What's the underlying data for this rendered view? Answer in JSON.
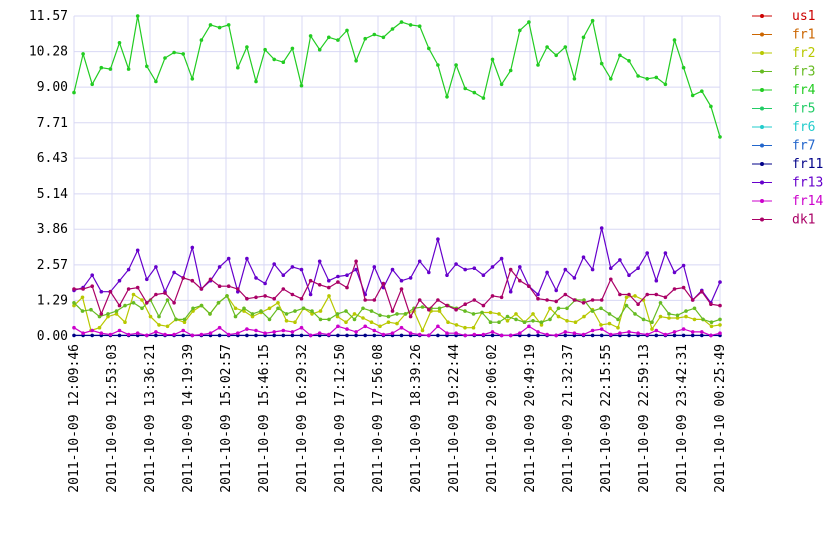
{
  "chart_data": {
    "type": "line",
    "title": "",
    "xlabel": "",
    "ylabel": "",
    "ylim": [
      0,
      11.57
    ],
    "grid": true,
    "legend_position": "right",
    "y_ticks": [
      "0.00",
      "1.29",
      "2.57",
      "3.86",
      "5.14",
      "6.43",
      "7.71",
      "9.00",
      "10.28",
      "11.57"
    ],
    "x_tick_labels": [
      "2011-10-09 12:09:46",
      "2011-10-09 12:53:03",
      "2011-10-09 13:36:21",
      "2011-10-09 14:19:39",
      "2011-10-09 15:02:57",
      "2011-10-09 15:46:15",
      "2011-10-09 16:29:32",
      "2011-10-09 17:12:50",
      "2011-10-09 17:56:08",
      "2011-10-09 18:39:26",
      "2011-10-09 19:22:44",
      "2011-10-09 20:06:02",
      "2011-10-09 20:49:19",
      "2011-10-09 21:32:37",
      "2011-10-09 22:15:55",
      "2011-10-09 22:59:13",
      "2011-10-09 23:42:31",
      "2011-10-10 00:25:49"
    ],
    "series": [
      {
        "name": "us1",
        "color": "#cc0000",
        "values": []
      },
      {
        "name": "fr1",
        "color": "#cc6600",
        "values": []
      },
      {
        "name": "fr2",
        "color": "#b8c800",
        "values": [
          1.1,
          1.4,
          0.2,
          0.3,
          0.7,
          0.8,
          0.5,
          1.5,
          1.3,
          0.7,
          0.4,
          0.35,
          0.6,
          0.5,
          0.9,
          1.1,
          0.8,
          1.2,
          1.45,
          1.0,
          0.9,
          0.7,
          0.85,
          1.0,
          1.2,
          0.55,
          0.5,
          1.0,
          0.8,
          0.9,
          1.45,
          0.7,
          0.5,
          0.8,
          0.65,
          0.5,
          0.35,
          0.5,
          0.45,
          0.8,
          0.9,
          0.2,
          0.9,
          0.9,
          0.5,
          0.4,
          0.3,
          0.3,
          0.85,
          0.85,
          0.8,
          0.55,
          0.8,
          0.5,
          0.8,
          0.4,
          1.0,
          0.7,
          0.55,
          0.5,
          0.7,
          0.95,
          0.4,
          0.45,
          0.3,
          1.4,
          1.45,
          1.3,
          0.25,
          0.7,
          0.65,
          0.65,
          0.7,
          0.6,
          0.6,
          0.35,
          0.4
        ]
      },
      {
        "name": "fr3",
        "color": "#66bb22",
        "values": [
          1.2,
          0.9,
          0.95,
          0.7,
          0.8,
          0.9,
          1.1,
          1.2,
          1.0,
          1.3,
          0.7,
          1.3,
          0.6,
          0.6,
          1.0,
          1.1,
          0.8,
          1.2,
          1.45,
          0.7,
          1.0,
          0.8,
          0.9,
          0.6,
          1.0,
          0.8,
          0.9,
          1.0,
          0.9,
          0.6,
          0.6,
          0.8,
          0.9,
          0.6,
          1.0,
          0.9,
          0.75,
          0.7,
          0.8,
          0.8,
          1.0,
          1.05,
          1.0,
          1.0,
          1.1,
          1.0,
          0.9,
          0.8,
          0.85,
          0.5,
          0.5,
          0.7,
          0.6,
          0.5,
          0.55,
          0.5,
          0.6,
          1.0,
          1.0,
          1.3,
          1.3,
          0.9,
          1.0,
          0.8,
          0.6,
          1.1,
          0.8,
          0.6,
          0.5,
          1.2,
          0.8,
          0.75,
          0.9,
          1.0,
          0.6,
          0.5,
          0.6
        ]
      },
      {
        "name": "fr4",
        "color": "#22cc22",
        "values": [
          8.8,
          10.2,
          9.1,
          9.7,
          9.65,
          10.6,
          9.65,
          11.57,
          9.75,
          9.2,
          10.05,
          10.25,
          10.2,
          9.3,
          10.7,
          11.25,
          11.15,
          11.25,
          9.7,
          10.45,
          9.2,
          10.35,
          10.0,
          9.9,
          10.4,
          9.05,
          10.85,
          10.35,
          10.8,
          10.7,
          11.05,
          9.95,
          10.75,
          10.9,
          10.8,
          11.1,
          11.35,
          11.25,
          11.2,
          10.4,
          9.8,
          8.65,
          9.8,
          8.95,
          8.8,
          8.6,
          10.0,
          9.1,
          9.6,
          11.05,
          11.35,
          9.8,
          10.45,
          10.15,
          10.45,
          9.3,
          10.8,
          11.4,
          9.85,
          9.3,
          10.15,
          9.95,
          9.4,
          9.3,
          9.35,
          9.1,
          10.7,
          9.7,
          8.7,
          8.85,
          8.3,
          7.2
        ]
      },
      {
        "name": "fr5",
        "color": "#22cc66",
        "values": []
      },
      {
        "name": "fr6",
        "color": "#22cccc",
        "values": []
      },
      {
        "name": "fr7",
        "color": "#2266cc",
        "values": []
      },
      {
        "name": "fr11",
        "color": "#000088",
        "values": [
          0.02,
          0.02,
          0.02,
          0.02,
          0.02,
          0.02,
          0.02,
          0.02,
          0.02,
          0.02,
          0.02,
          0.02,
          0.02,
          0.02,
          0.02,
          0.02,
          0.02,
          0.02,
          0.02,
          0.02,
          0.02,
          0.02,
          0.02,
          0.02,
          0.02,
          0.02,
          0.02,
          0.02,
          0.02,
          0.02,
          0.02,
          0.02,
          0.02,
          0.02,
          0.02,
          0.02,
          0.02,
          0.02,
          0.02,
          0.02,
          0.02,
          0.02,
          0.02,
          0.02,
          0.02,
          0.02,
          0.02,
          0.02,
          0.02,
          0.02,
          0.02,
          0.02,
          0.02,
          0.02,
          0.02,
          0.02,
          0.02,
          0.02,
          0.02,
          0.02,
          0.02,
          0.02,
          0.02,
          0.02,
          0.02,
          0.02,
          0.02,
          0.02,
          0.02,
          0.02,
          0.02,
          0.02
        ]
      },
      {
        "name": "fr13",
        "color": "#6600cc",
        "values": [
          1.65,
          1.75,
          2.2,
          1.6,
          1.6,
          2.0,
          2.4,
          3.1,
          2.05,
          2.5,
          1.6,
          2.3,
          2.1,
          3.2,
          1.7,
          2.0,
          2.5,
          2.8,
          1.6,
          2.8,
          2.1,
          1.9,
          2.6,
          2.2,
          2.5,
          2.4,
          1.5,
          2.7,
          2.0,
          2.15,
          2.2,
          2.4,
          1.5,
          2.5,
          1.75,
          2.4,
          2.0,
          2.1,
          2.7,
          2.3,
          3.5,
          2.2,
          2.6,
          2.4,
          2.45,
          2.2,
          2.5,
          2.8,
          1.6,
          2.5,
          1.8,
          1.5,
          2.3,
          1.65,
          2.4,
          2.1,
          2.85,
          2.4,
          3.9,
          2.45,
          2.75,
          2.2,
          2.45,
          3.0,
          2.0,
          3.0,
          2.3,
          2.55,
          1.3,
          1.65,
          1.2,
          1.95
        ]
      },
      {
        "name": "fr14",
        "color": "#cc00cc",
        "values": [
          0.3,
          0.1,
          0.2,
          0.1,
          0.05,
          0.2,
          0.05,
          0.1,
          0.02,
          0.15,
          0.05,
          0.05,
          0.2,
          0.02,
          0.05,
          0.1,
          0.3,
          0.05,
          0.1,
          0.25,
          0.2,
          0.1,
          0.15,
          0.2,
          0.15,
          0.3,
          0.02,
          0.1,
          0.05,
          0.35,
          0.25,
          0.15,
          0.35,
          0.2,
          0.05,
          0.1,
          0.3,
          0.1,
          0.05,
          0.02,
          0.35,
          0.1,
          0.1,
          0.02,
          0.05,
          0.05,
          0.15,
          0.02,
          0.02,
          0.1,
          0.35,
          0.15,
          0.05,
          0.02,
          0.15,
          0.1,
          0.05,
          0.2,
          0.25,
          0.05,
          0.1,
          0.15,
          0.1,
          0.05,
          0.2,
          0.05,
          0.15,
          0.25,
          0.15,
          0.15,
          0.02,
          0.1
        ]
      },
      {
        "name": "dk1",
        "color": "#aa0066",
        "values": [
          1.7,
          1.7,
          1.8,
          0.8,
          1.6,
          1.1,
          1.7,
          1.75,
          1.2,
          1.5,
          1.55,
          1.2,
          2.1,
          2.0,
          1.7,
          2.05,
          1.8,
          1.8,
          1.7,
          1.35,
          1.4,
          1.45,
          1.35,
          1.7,
          1.5,
          1.35,
          2.0,
          1.85,
          1.75,
          1.95,
          1.75,
          2.7,
          1.3,
          1.3,
          1.9,
          0.9,
          1.7,
          0.7,
          1.3,
          0.95,
          1.3,
          1.1,
          0.95,
          1.15,
          1.3,
          1.1,
          1.45,
          1.4,
          2.4,
          2.0,
          1.8,
          1.35,
          1.3,
          1.25,
          1.5,
          1.3,
          1.2,
          1.3,
          1.3,
          2.05,
          1.5,
          1.5,
          1.15,
          1.5,
          1.5,
          1.4,
          1.7,
          1.75,
          1.3,
          1.6,
          1.15,
          1.1
        ]
      }
    ]
  }
}
